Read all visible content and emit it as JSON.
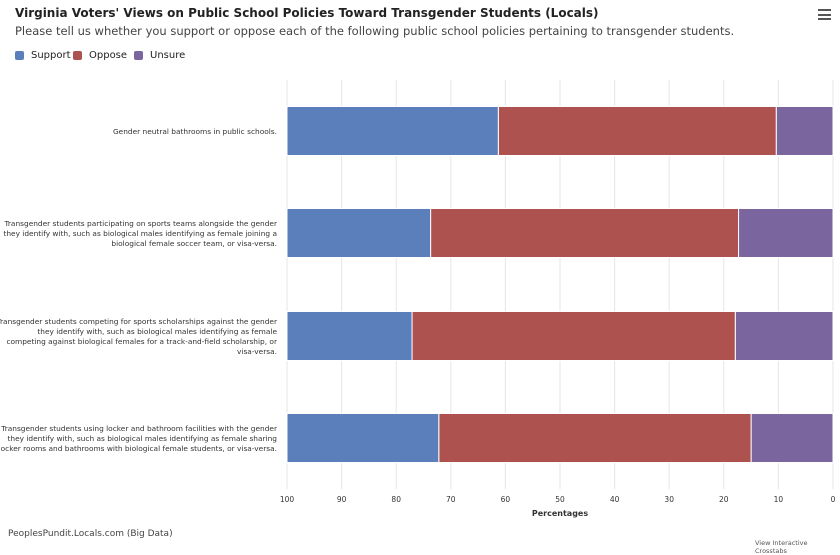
{
  "header": {
    "title": "Virginia Voters' Views on Public School Policies Toward Transgender Students (Locals)",
    "subtitle": "Please tell us whether you support or oppose each of the following public school policies pertaining to transgender students.",
    "menu_icon": "hamburger-menu-icon"
  },
  "legend": [
    {
      "name": "Support",
      "color": "#5b7fba"
    },
    {
      "name": "Oppose",
      "color": "#ad524e"
    },
    {
      "name": "Unsure",
      "color": "#7a659e"
    }
  ],
  "chart_data": {
    "type": "bar",
    "orientation": "horizontal",
    "stacked": true,
    "x_reversed": true,
    "xlabel": "Percentages",
    "xlim": [
      0,
      100
    ],
    "xticks": [
      100,
      90,
      80,
      70,
      60,
      50,
      40,
      30,
      20,
      10,
      0
    ],
    "grid": true,
    "categories": [
      [
        "Gender neutral bathrooms in public schools."
      ],
      [
        "Transgender students participating on sports teams alongside the gender",
        "they identify with, such as biological males identifying as female joining a",
        "biological female soccer team, or visa-versa."
      ],
      [
        "Transgender students competing for sports scholarships against the gender",
        "they identify with, such as biological males identifying as female",
        "competing against biological females for a track-and-field scholarship, or",
        "visa-versa."
      ],
      [
        "Transgender students using locker and bathroom facilities with the gender",
        "they identify with, such as biological males identifying as female sharing",
        "locker rooms and bathrooms with biological female students, or visa-versa."
      ]
    ],
    "series": [
      {
        "name": "Support",
        "color": "#5b7fba",
        "values": [
          38.7,
          26.3,
          22.9,
          27.8
        ]
      },
      {
        "name": "Oppose",
        "color": "#ad524e",
        "values": [
          50.9,
          56.4,
          59.2,
          57.2
        ]
      },
      {
        "name": "Unsure",
        "color": "#7a659e",
        "values": [
          10.4,
          17.3,
          17.9,
          15.0
        ]
      }
    ]
  },
  "footer": {
    "source": "PeoplesPundit.Locals.com (Big Data)",
    "crosstabs_link": "View Interactive Crosstabs"
  }
}
